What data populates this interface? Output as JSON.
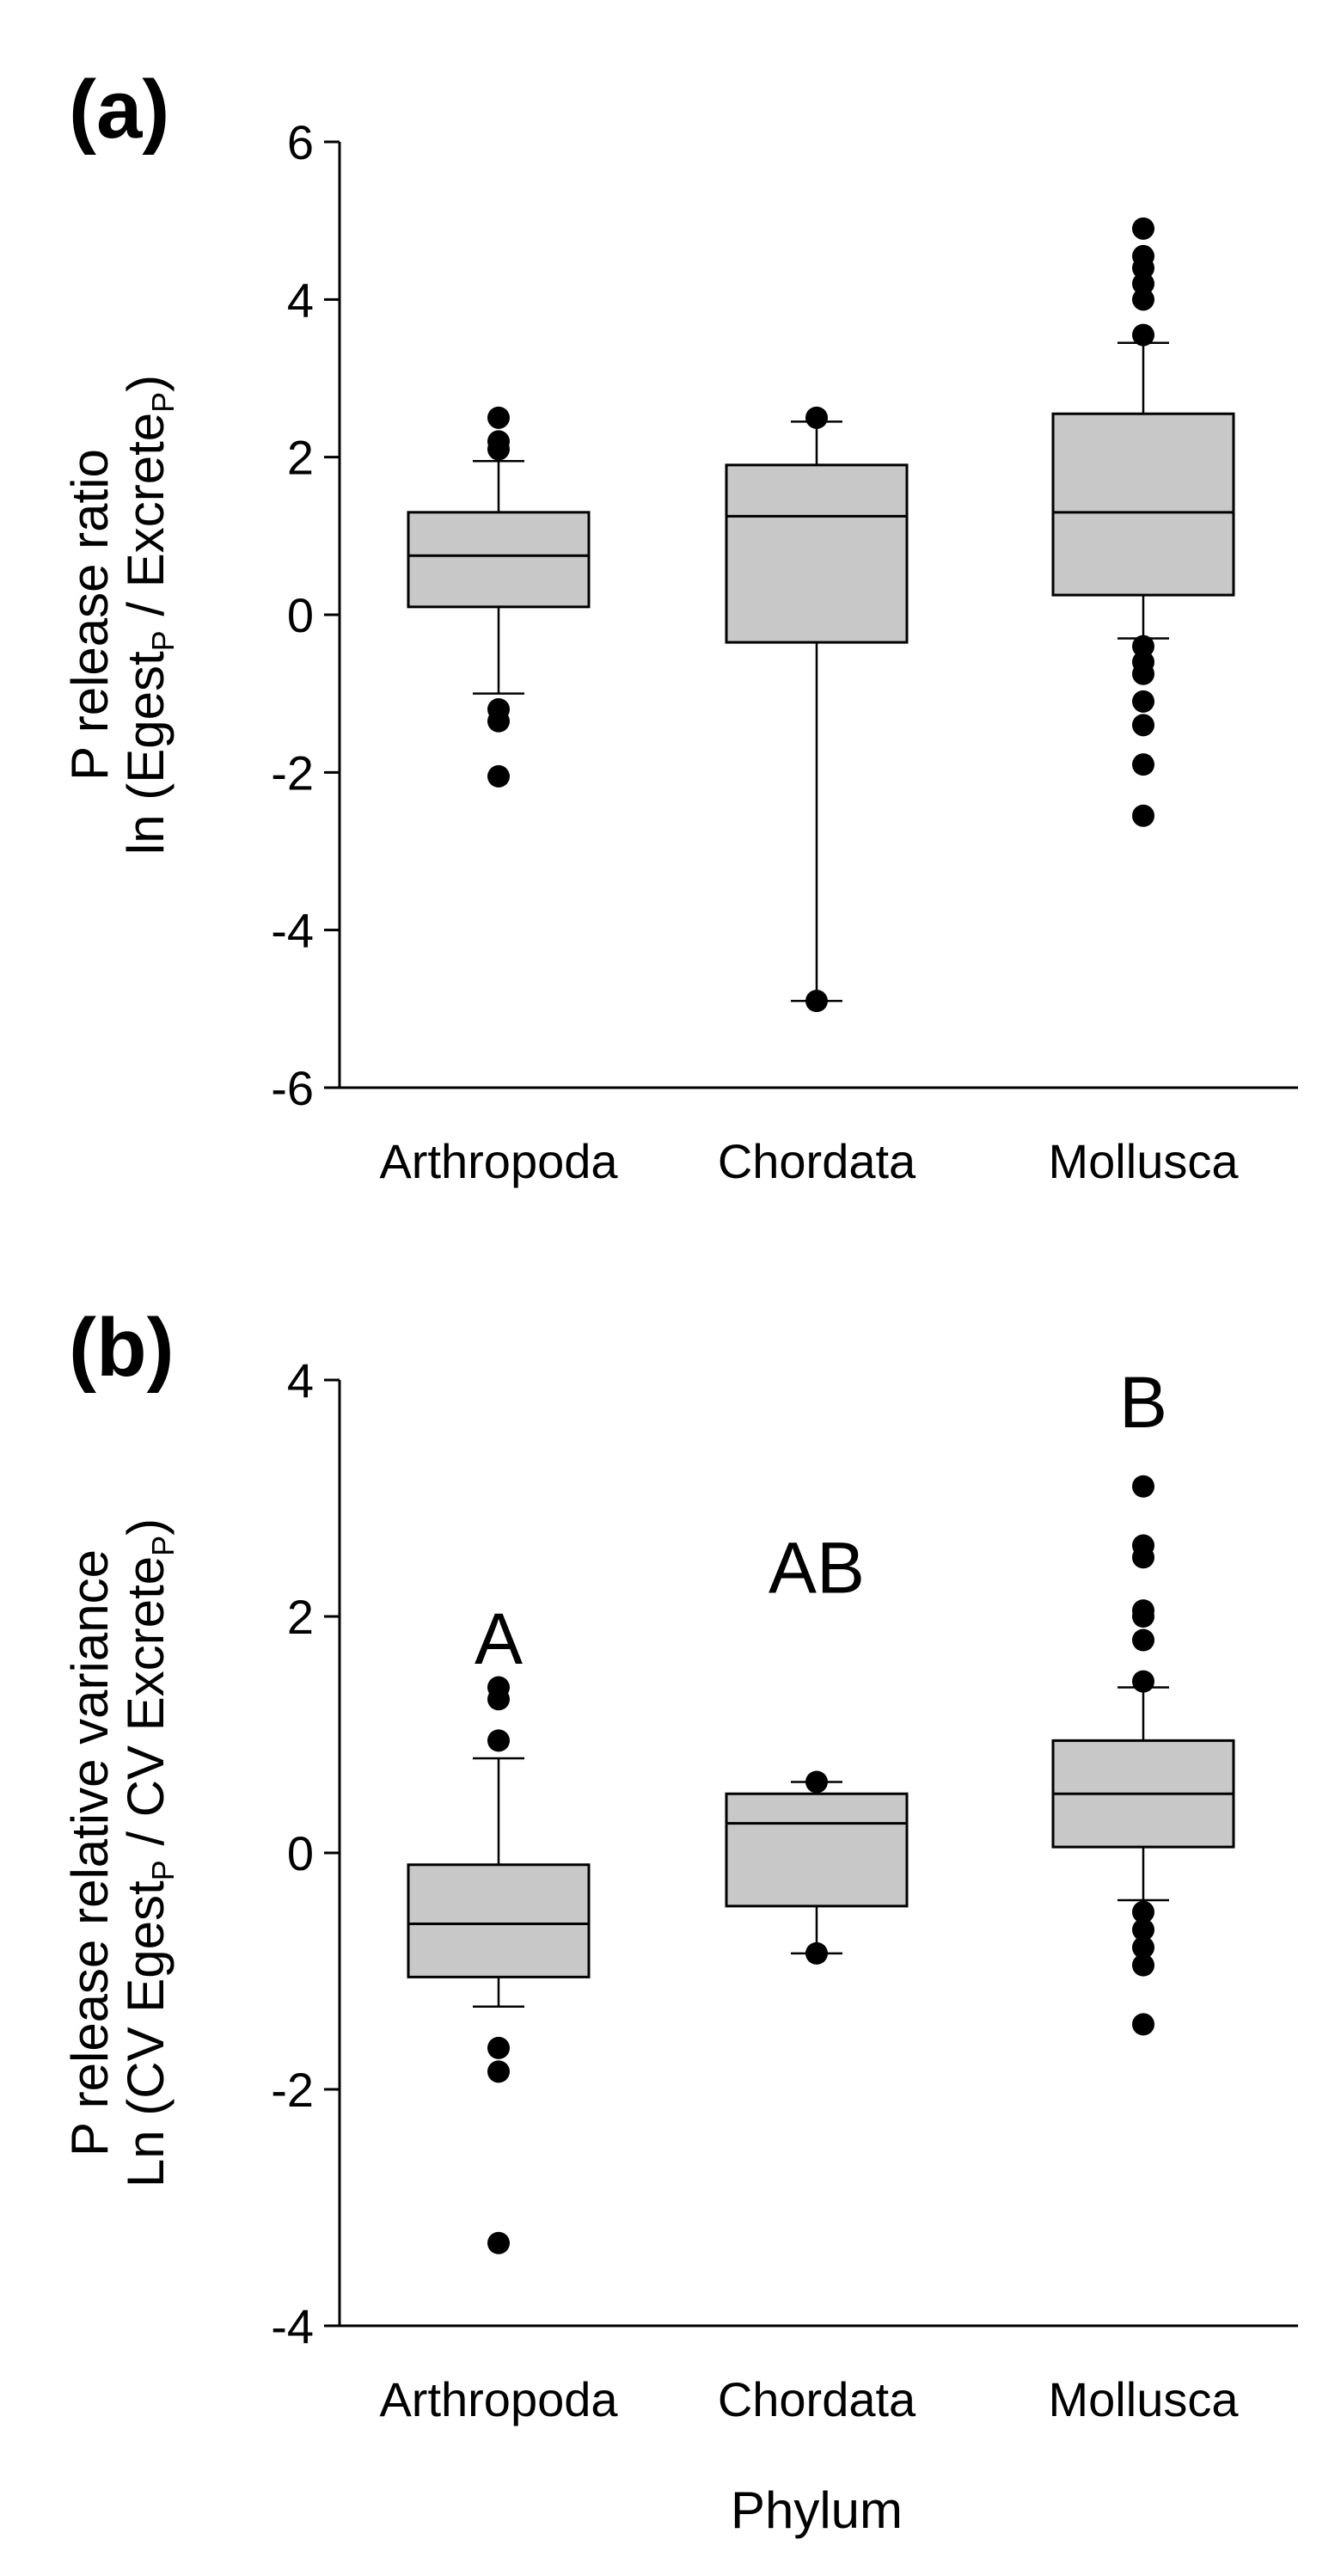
{
  "chart_data": [
    {
      "type": "box",
      "panel": "(a)",
      "ylabel_lines": [
        [
          {
            "t": "P release ratio"
          }
        ],
        [
          {
            "t": "ln (Egest"
          },
          {
            "t": "P",
            "sub": true
          },
          {
            "t": " / Excrete"
          },
          {
            "t": "P",
            "sub": true
          },
          {
            "t": ")"
          }
        ]
      ],
      "xlabel": "",
      "ylim": [
        -6,
        6
      ],
      "yticks": [
        6,
        4,
        2,
        0,
        -2,
        -4,
        -6
      ],
      "categories": [
        "Arthropoda",
        "Chordata",
        "Mollusca"
      ],
      "letters": [
        "",
        "",
        ""
      ],
      "boxes": [
        {
          "name": "Arthropoda",
          "whisker_low": -1.0,
          "q1": 0.1,
          "median": 0.75,
          "q3": 1.3,
          "whisker_high": 1.95,
          "outliers": [
            2.5,
            2.2,
            2.1,
            -1.2,
            -1.35,
            -2.05
          ]
        },
        {
          "name": "Chordata",
          "whisker_low": -4.9,
          "q1": -0.35,
          "median": 1.25,
          "q3": 1.9,
          "whisker_high": 2.45,
          "outliers": [
            2.5,
            -4.9
          ]
        },
        {
          "name": "Mollusca",
          "whisker_low": -0.3,
          "q1": 0.25,
          "median": 1.3,
          "q3": 2.55,
          "whisker_high": 3.45,
          "outliers": [
            4.9,
            4.55,
            4.4,
            4.2,
            4.0,
            3.55,
            -0.4,
            -0.6,
            -0.75,
            -1.1,
            -1.4,
            -1.9,
            -2.55
          ]
        }
      ]
    },
    {
      "type": "box",
      "panel": "(b)",
      "ylabel_lines": [
        [
          {
            "t": "P release relative variance"
          }
        ],
        [
          {
            "t": "Ln (CV Egest"
          },
          {
            "t": "P",
            "sub": true
          },
          {
            "t": " / CV Excrete"
          },
          {
            "t": "P",
            "sub": true
          },
          {
            "t": ")"
          }
        ]
      ],
      "xlabel": "Phylum",
      "ylim": [
        -4,
        4
      ],
      "yticks": [
        4,
        2,
        0,
        -2,
        -4
      ],
      "categories": [
        "Arthropoda",
        "Chordata",
        "Mollusca"
      ],
      "letters": [
        "A",
        "AB",
        "B"
      ],
      "boxes": [
        {
          "name": "Arthropoda",
          "whisker_low": -1.3,
          "q1": -1.05,
          "median": -0.6,
          "q3": -0.1,
          "whisker_high": 0.8,
          "outliers": [
            1.4,
            1.3,
            0.95,
            -1.65,
            -1.85,
            -3.3
          ]
        },
        {
          "name": "Chordata",
          "whisker_low": -0.85,
          "q1": -0.45,
          "median": 0.25,
          "q3": 0.5,
          "whisker_high": 0.6,
          "outliers": [
            0.6,
            -0.85
          ]
        },
        {
          "name": "Mollusca",
          "whisker_low": -0.4,
          "q1": 0.05,
          "median": 0.5,
          "q3": 0.95,
          "whisker_high": 1.4,
          "outliers": [
            3.1,
            2.6,
            2.5,
            2.05,
            2.0,
            1.8,
            1.45,
            -0.5,
            -0.65,
            -0.8,
            -0.95,
            -1.45
          ]
        }
      ]
    }
  ]
}
